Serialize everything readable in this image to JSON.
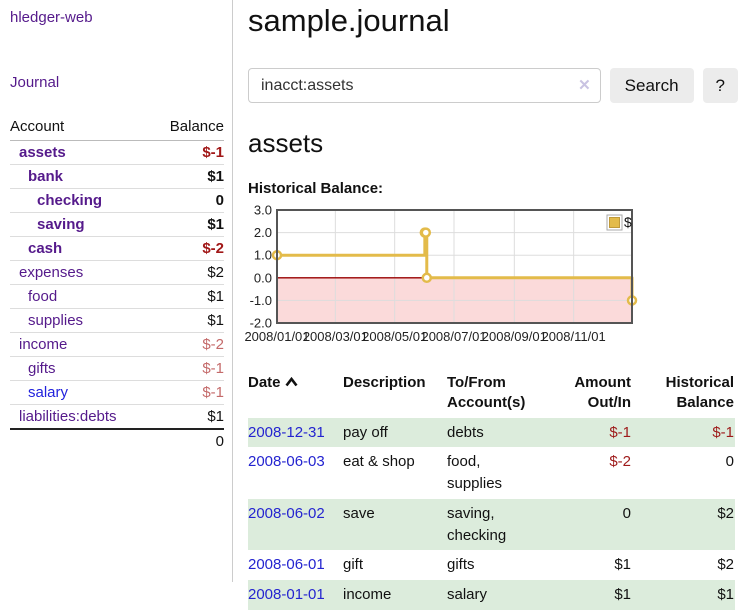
{
  "colors": {
    "link_purple": "#551a8b",
    "link_blue": "#2222dd",
    "negative_strong": "#a11717",
    "negative_soft": "#c46a6a",
    "row_shade_green": "#dcecdc",
    "series_gold": "#e3bb4a",
    "negative_region_pink": "#fbdada",
    "zero_line_red": "#990000"
  },
  "sidebar": {
    "app_title": "hledger-web",
    "nav": {
      "journal_label": "Journal"
    },
    "accounts_table": {
      "headers": {
        "account": "Account",
        "balance": "Balance"
      },
      "rows": [
        {
          "name": "assets",
          "balance": "$-1",
          "indent": 1,
          "bold": true,
          "name_style": "purple",
          "balance_style": "neg-strong"
        },
        {
          "name": "bank",
          "balance": "$1",
          "indent": 2,
          "bold": true,
          "name_style": "purple",
          "balance_style": "plain"
        },
        {
          "name": "checking",
          "balance": "0",
          "indent": 3,
          "bold": true,
          "name_style": "purple",
          "balance_style": "plain"
        },
        {
          "name": "saving",
          "balance": "$1",
          "indent": 3,
          "bold": true,
          "name_style": "purple",
          "balance_style": "plain"
        },
        {
          "name": "cash",
          "balance": "$-2",
          "indent": 2,
          "bold": true,
          "name_style": "purple",
          "balance_style": "neg-strong"
        },
        {
          "name": "expenses",
          "balance": "$2",
          "indent": 1,
          "bold": false,
          "name_style": "purple",
          "balance_style": "plain"
        },
        {
          "name": "food",
          "balance": "$1",
          "indent": 2,
          "bold": false,
          "name_style": "purple",
          "balance_style": "plain"
        },
        {
          "name": "supplies",
          "balance": "$1",
          "indent": 2,
          "bold": false,
          "name_style": "purple",
          "balance_style": "plain"
        },
        {
          "name": "income",
          "balance": "$-2",
          "indent": 1,
          "bold": false,
          "name_style": "purple",
          "balance_style": "neg-soft"
        },
        {
          "name": "gifts",
          "balance": "$-1",
          "indent": 2,
          "bold": false,
          "name_style": "purple",
          "balance_style": "neg-soft"
        },
        {
          "name": "salary",
          "balance": "$-1",
          "indent": 2,
          "bold": false,
          "name_style": "blue",
          "balance_style": "neg-soft"
        },
        {
          "name": "liabilities:debts",
          "balance": "$1",
          "indent": 1,
          "bold": false,
          "name_style": "purple",
          "balance_style": "plain"
        }
      ],
      "total": "0"
    }
  },
  "main": {
    "title": "sample.journal",
    "search": {
      "value": "inacct:assets",
      "clear_icon": "✕",
      "button_label": "Search",
      "help_label": "?"
    },
    "account_heading": "assets",
    "chart_heading": "Historical Balance:",
    "register_table": {
      "headers": {
        "date": "Date",
        "date_sort_icon": "chevron-up",
        "description": "Description",
        "accounts": "To/From Account(s)",
        "amount": "Amount Out/In",
        "balance": "Historical Balance"
      },
      "rows": [
        {
          "date": "2008-12-31",
          "description": "pay off",
          "accounts": "debts",
          "amount": "$-1",
          "balance": "$-1",
          "amount_neg": true,
          "balance_neg": true,
          "shaded": true
        },
        {
          "date": "2008-06-03",
          "description": "eat & shop",
          "accounts": "food, supplies",
          "amount": "$-2",
          "balance": "0",
          "amount_neg": true,
          "balance_neg": false,
          "shaded": false
        },
        {
          "date": "2008-06-02",
          "description": "save",
          "accounts": "saving, checking",
          "amount": "0",
          "balance": "$2",
          "amount_neg": false,
          "balance_neg": false,
          "shaded": true
        },
        {
          "date": "2008-06-01",
          "description": "gift",
          "accounts": "gifts",
          "amount": "$1",
          "balance": "$2",
          "amount_neg": false,
          "balance_neg": false,
          "shaded": false
        },
        {
          "date": "2008-01-01",
          "description": "income",
          "accounts": "salary",
          "amount": "$1",
          "balance": "$1",
          "amount_neg": false,
          "balance_neg": false,
          "shaded": true
        }
      ]
    }
  },
  "chart_data": {
    "type": "line",
    "step": true,
    "title": "Historical Balance:",
    "legend": {
      "label": "$",
      "position": "top-right"
    },
    "ylim": [
      -2,
      3
    ],
    "y_ticks": [
      {
        "label": "3.0",
        "value": 3
      },
      {
        "label": "2.0",
        "value": 2
      },
      {
        "label": "1.0",
        "value": 1
      },
      {
        "label": "0.0",
        "value": 0
      },
      {
        "label": "-1.0",
        "value": -1
      },
      {
        "label": "-2.0",
        "value": -2
      }
    ],
    "x_range_days": [
      0,
      365
    ],
    "x_ticks": [
      {
        "label": "2008/01/01",
        "day": 0
      },
      {
        "label": "2008/03/01",
        "day": 60
      },
      {
        "label": "2008/05/01",
        "day": 121
      },
      {
        "label": "2008/07/01",
        "day": 182
      },
      {
        "label": "2008/09/01",
        "day": 244
      },
      {
        "label": "2008/11/01",
        "day": 305
      }
    ],
    "series": [
      {
        "name": "$",
        "color": "#e3bb4a",
        "points": [
          {
            "date": "2008-01-01",
            "day": 0,
            "value": 1
          },
          {
            "date": "2008-06-01",
            "day": 152,
            "value": 2
          },
          {
            "date": "2008-06-02",
            "day": 153,
            "value": 2
          },
          {
            "date": "2008-06-03",
            "day": 154,
            "value": 0
          },
          {
            "date": "2008-12-31",
            "day": 365,
            "value": -1
          }
        ]
      }
    ],
    "negative_region_color": "#fbdada",
    "zero_line_color": "#990000",
    "grid": true
  }
}
